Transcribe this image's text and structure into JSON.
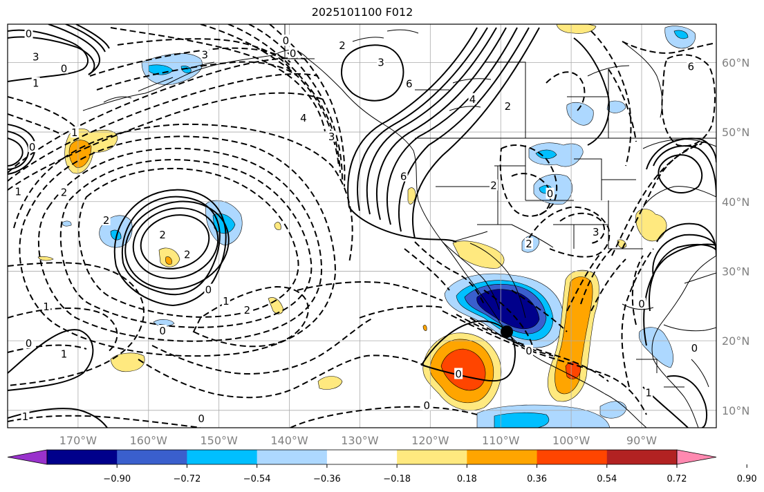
{
  "title": "2025101100 F012",
  "map": {
    "lon_min": -180,
    "lon_max": -79.4,
    "lat_min": 7.5,
    "lat_max": 65.5,
    "lat_ticks": [
      {
        "v": 10,
        "label": "10°N"
      },
      {
        "v": 20,
        "label": "20°N"
      },
      {
        "v": 30,
        "label": "30°N"
      },
      {
        "v": 40,
        "label": "40°N"
      },
      {
        "v": 50,
        "label": "50°N"
      },
      {
        "v": 60,
        "label": "60°N"
      }
    ],
    "lon_ticks": [
      {
        "v": -170,
        "label": "170°W"
      },
      {
        "v": -160,
        "label": "160°W"
      },
      {
        "v": -150,
        "label": "150°W"
      },
      {
        "v": -140,
        "label": "140°W"
      },
      {
        "v": -130,
        "label": "130°W"
      },
      {
        "v": -120,
        "label": "120°W"
      },
      {
        "v": -110,
        "label": "110°W"
      },
      {
        "v": -100,
        "label": "100°W"
      },
      {
        "v": -90,
        "label": "90°W"
      }
    ],
    "grid": true
  },
  "colorbar": {
    "levels": [
      "-0.90",
      "-0.72",
      "-0.54",
      "-0.36",
      "-0.18",
      "0.18",
      "0.36",
      "0.54",
      "0.72",
      "0.90"
    ],
    "colors": [
      "#9932cc",
      "#00008b",
      "#3a5fcd",
      "#00bfff",
      "#add8ff",
      "#ffffff",
      "#ffe97f",
      "#ffa500",
      "#ff4500",
      "#b22222",
      "#ff89b0"
    ],
    "extend": "both"
  },
  "contour_labels": [
    {
      "text": "3",
      "lon": -152,
      "lat": 61.0
    },
    {
      "text": "4",
      "lon": -138,
      "lat": 51.9
    },
    {
      "text": "3",
      "lon": -134,
      "lat": 49.2
    },
    {
      "text": "6",
      "lon": -123,
      "lat": 56.8
    },
    {
      "text": "2",
      "lon": -132.5,
      "lat": 62.3
    },
    {
      "text": "3",
      "lon": -127,
      "lat": 59.9
    },
    {
      "text": "0",
      "lon": -140.5,
      "lat": 63.0
    },
    {
      "text": "0",
      "lon": -139.5,
      "lat": 61.2
    },
    {
      "text": "2",
      "lon": -158,
      "lat": 35.1
    },
    {
      "text": "2",
      "lon": -154.5,
      "lat": 32.3
    },
    {
      "text": "0",
      "lon": -151.5,
      "lat": 27.2
    },
    {
      "text": "2",
      "lon": -146,
      "lat": 24.3
    },
    {
      "text": "1",
      "lon": -149,
      "lat": 25.6
    },
    {
      "text": "2",
      "lon": -166,
      "lat": 37.2
    },
    {
      "text": "1",
      "lon": -174.5,
      "lat": 24.8
    },
    {
      "text": "0",
      "lon": -177,
      "lat": 19.5
    },
    {
      "text": "1",
      "lon": -172,
      "lat": 18.0
    },
    {
      "text": "0",
      "lon": -158,
      "lat": 21.3
    },
    {
      "text": "1",
      "lon": -177.5,
      "lat": 9.0
    },
    {
      "text": "0",
      "lon": -152.5,
      "lat": 8.7
    },
    {
      "text": "0",
      "lon": -120.5,
      "lat": 10.6
    },
    {
      "text": "0",
      "lon": -116,
      "lat": 15.1
    },
    {
      "text": "0",
      "lon": -106,
      "lat": 18.4
    },
    {
      "text": "6",
      "lon": -123.8,
      "lat": 43.5
    },
    {
      "text": "2",
      "lon": -111,
      "lat": 42.2
    },
    {
      "text": "2",
      "lon": -109,
      "lat": 53.6
    },
    {
      "text": "4",
      "lon": -114,
      "lat": 54.6
    },
    {
      "text": "0",
      "lon": -103,
      "lat": 41.0
    },
    {
      "text": "2",
      "lon": -106,
      "lat": 33.8
    },
    {
      "text": "3",
      "lon": -96.5,
      "lat": 35.5
    },
    {
      "text": "6",
      "lon": -83,
      "lat": 59.3
    },
    {
      "text": "0",
      "lon": -90,
      "lat": 25.2
    },
    {
      "text": "1",
      "lon": -89,
      "lat": 12.4
    },
    {
      "text": "0",
      "lon": -82.5,
      "lat": 18.8
    },
    {
      "text": "2",
      "lon": -172,
      "lat": 41.2
    },
    {
      "text": "0",
      "lon": -176.5,
      "lat": 47.7
    },
    {
      "text": "1",
      "lon": -170.5,
      "lat": 49.8
    },
    {
      "text": "0",
      "lon": -172,
      "lat": 59.0
    },
    {
      "text": "1",
      "lon": -176,
      "lat": 56.9
    },
    {
      "text": "3",
      "lon": -176,
      "lat": 60.7
    },
    {
      "text": "1",
      "lon": -178.5,
      "lat": 41.3
    },
    {
      "text": "0",
      "lon": -177,
      "lat": 64.0
    }
  ]
}
